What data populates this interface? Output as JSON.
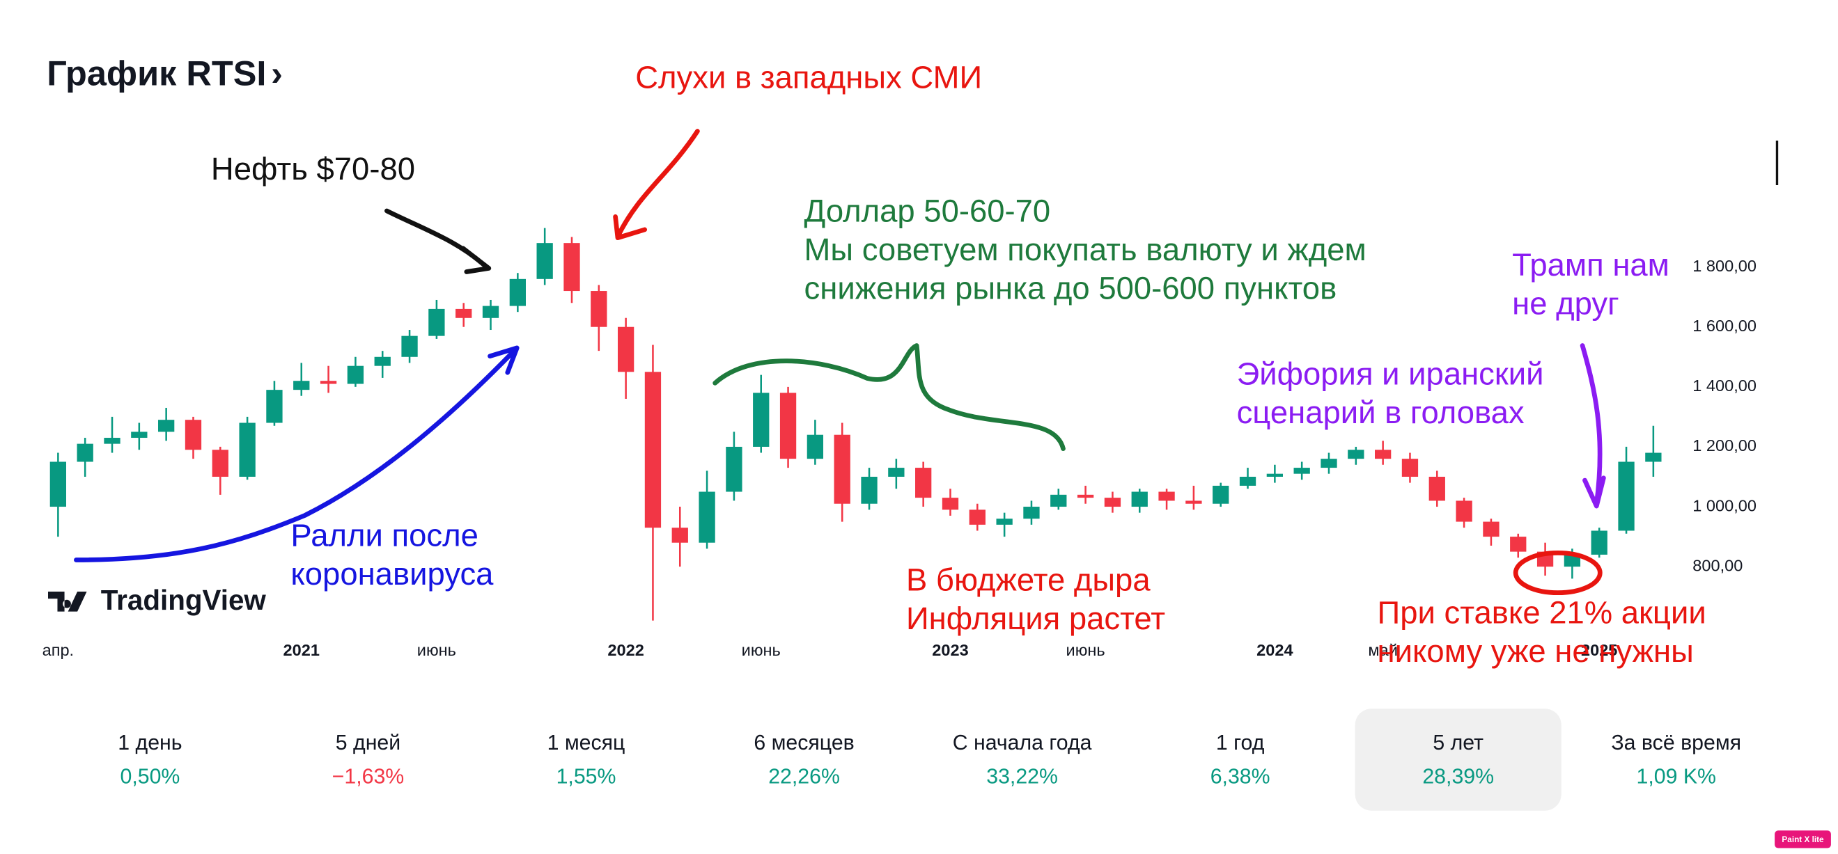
{
  "header": {
    "title": "График RTSI",
    "chevron": "›"
  },
  "chart_data": {
    "type": "candlestick",
    "categories": [
      "апр.",
      null,
      null,
      null,
      null,
      null,
      null,
      null,
      null,
      "2021",
      null,
      null,
      null,
      null,
      "июнь",
      null,
      null,
      null,
      null,
      null,
      null,
      "2022",
      null,
      null,
      null,
      null,
      "июнь",
      null,
      null,
      null,
      null,
      null,
      null,
      "2023",
      null,
      null,
      null,
      null,
      "июнь",
      null,
      null,
      null,
      null,
      null,
      null,
      "2024",
      null,
      null,
      null,
      "май",
      null,
      null,
      null,
      null,
      null,
      null,
      null,
      "2025",
      null,
      null
    ],
    "open": [
      1000,
      1150,
      1210,
      1230,
      1250,
      1290,
      1190,
      1100,
      1280,
      1390,
      1420,
      1410,
      1470,
      1500,
      1570,
      1660,
      1630,
      1670,
      1760,
      1880,
      1720,
      1600,
      1450,
      930,
      880,
      1050,
      1200,
      1380,
      1160,
      1240,
      1010,
      1100,
      1130,
      1030,
      990,
      940,
      960,
      1000,
      1040,
      1030,
      1000,
      1050,
      1020,
      1010,
      1070,
      1100,
      1110,
      1130,
      1160,
      1190,
      1160,
      1100,
      1020,
      950,
      900,
      850,
      800,
      840,
      920,
      1150
    ],
    "high": [
      1180,
      1230,
      1300,
      1280,
      1330,
      1300,
      1200,
      1300,
      1420,
      1480,
      1470,
      1500,
      1520,
      1590,
      1690,
      1680,
      1690,
      1780,
      1930,
      1900,
      1740,
      1630,
      1540,
      1000,
      1120,
      1250,
      1440,
      1400,
      1290,
      1280,
      1130,
      1160,
      1150,
      1060,
      1010,
      980,
      1020,
      1060,
      1070,
      1050,
      1060,
      1060,
      1070,
      1080,
      1130,
      1140,
      1150,
      1180,
      1200,
      1220,
      1180,
      1120,
      1030,
      960,
      910,
      880,
      860,
      930,
      1200,
      1270
    ],
    "low": [
      900,
      1100,
      1180,
      1190,
      1220,
      1160,
      1040,
      1090,
      1270,
      1370,
      1380,
      1400,
      1430,
      1480,
      1560,
      1600,
      1590,
      1650,
      1740,
      1680,
      1520,
      1360,
      620,
      800,
      860,
      1020,
      1180,
      1130,
      1140,
      950,
      990,
      1060,
      1000,
      970,
      920,
      900,
      940,
      990,
      1010,
      980,
      980,
      990,
      990,
      1000,
      1060,
      1080,
      1090,
      1110,
      1140,
      1140,
      1080,
      1000,
      930,
      870,
      830,
      770,
      760,
      830,
      910,
      1100
    ],
    "close": [
      1150,
      1210,
      1230,
      1250,
      1290,
      1190,
      1100,
      1280,
      1390,
      1420,
      1410,
      1470,
      1500,
      1570,
      1660,
      1630,
      1670,
      1760,
      1880,
      1720,
      1600,
      1450,
      930,
      880,
      1050,
      1200,
      1380,
      1160,
      1240,
      1010,
      1100,
      1130,
      1030,
      990,
      940,
      960,
      1000,
      1040,
      1030,
      1000,
      1050,
      1020,
      1010,
      1070,
      1100,
      1110,
      1130,
      1160,
      1190,
      1160,
      1100,
      1020,
      950,
      900,
      850,
      800,
      840,
      920,
      1150,
      1180
    ],
    "up_color": "#089981",
    "down_color": "#f23645",
    "ylim": [
      580,
      2300
    ],
    "yticks": [
      {
        "value": 800,
        "label": "800,00"
      },
      {
        "value": 1000,
        "label": "1 000,00"
      },
      {
        "value": 1200,
        "label": "1 200,00"
      },
      {
        "value": 1400,
        "label": "1 400,00"
      },
      {
        "value": 1600,
        "label": "1 600,00"
      },
      {
        "value": 1800,
        "label": "1 800,00"
      }
    ],
    "grid": false
  },
  "annotations": [
    {
      "lines": [
        "Нефть $70-80"
      ],
      "color": "#111111"
    },
    {
      "lines": [
        "Слухи в западных СМИ"
      ],
      "color": "#e8150f"
    },
    {
      "lines": [
        "Доллар 50-60-70",
        "Мы советуем покупать валюту и ждем",
        "снижения рынка до 500-600 пунктов"
      ],
      "color": "#1e7a3c"
    },
    {
      "lines": [
        "Трамп нам",
        "не друг"
      ],
      "color": "#8b1cf2"
    },
    {
      "lines": [
        "Эйфория и иранский",
        "сценарий в головах"
      ],
      "color": "#8b1cf2"
    },
    {
      "lines": [
        "Ралли после",
        "коронавируса"
      ],
      "color": "#1515e0"
    },
    {
      "lines": [
        "В бюджете дыра",
        "Инфляция растет"
      ],
      "color": "#e8150f"
    },
    {
      "lines": [
        "При ставке 21% акции",
        "никому уже не нужны"
      ],
      "color": "#e8150f"
    }
  ],
  "period_tabs": {
    "selected": 6,
    "tabs": [
      {
        "label": "1 день",
        "value": "0,50%",
        "color": "#089981"
      },
      {
        "label": "5 дней",
        "value": "−1,63%",
        "color": "#f23645"
      },
      {
        "label": "1 месяц",
        "value": "1,55%",
        "color": "#089981"
      },
      {
        "label": "6 месяцев",
        "value": "22,26%",
        "color": "#089981"
      },
      {
        "label": "С начала года",
        "value": "33,22%",
        "color": "#089981"
      },
      {
        "label": "1 год",
        "value": "6,38%",
        "color": "#089981"
      },
      {
        "label": "5 лет",
        "value": "28,39%",
        "color": "#089981"
      },
      {
        "label": "За всё время",
        "value": "1,09 K%",
        "color": "#089981"
      }
    ]
  },
  "logo": "TradingView",
  "watermark": "Paint X lite"
}
